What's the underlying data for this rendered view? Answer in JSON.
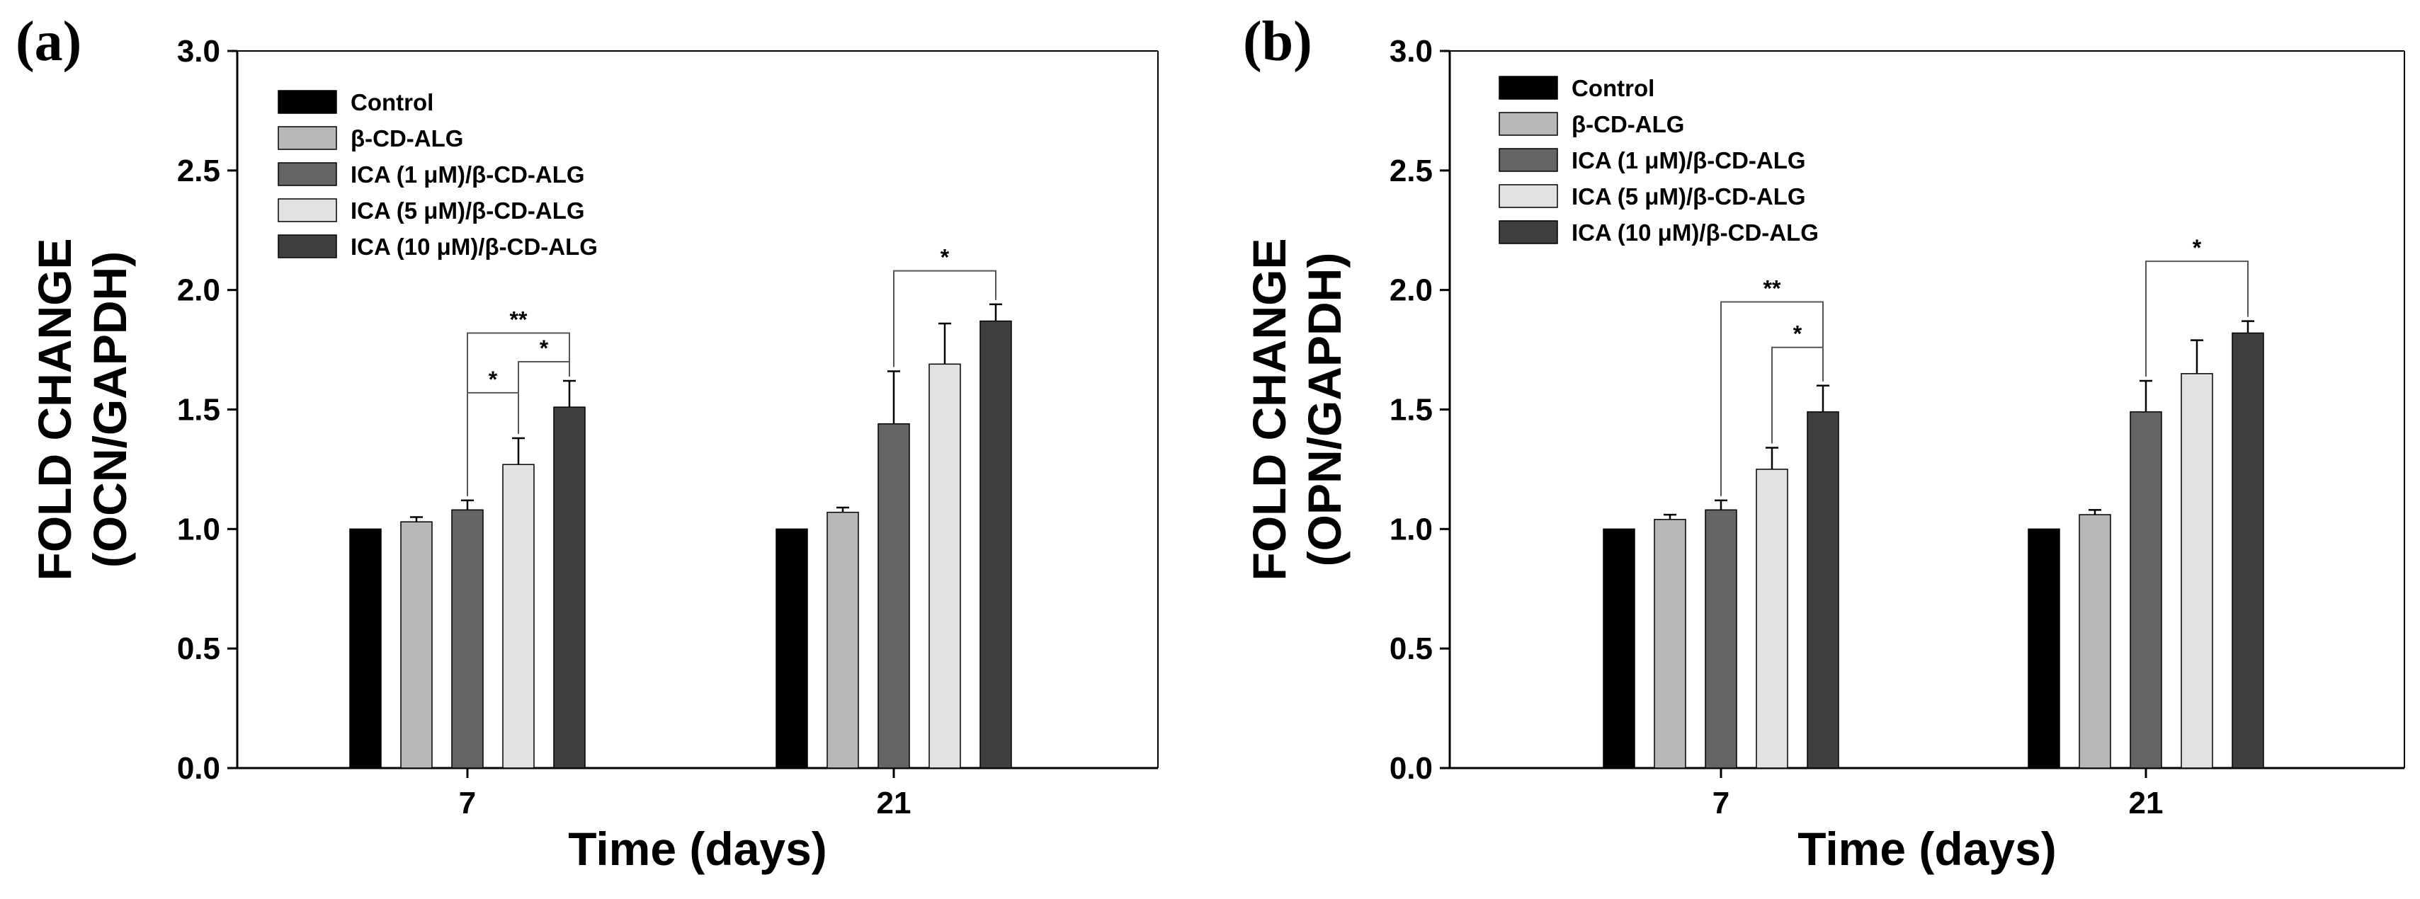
{
  "chart_data": [
    {
      "type": "bar",
      "panel_label": "(a)",
      "ylabel": "FOLD CHANGE",
      "ylabel2": "(OCN/GAPDH)",
      "xlabel": "Time (days)",
      "categories": [
        "7",
        "21"
      ],
      "ylim": [
        0,
        3.0
      ],
      "yticks": [
        "0.0",
        "0.5",
        "1.0",
        "1.5",
        "2.0",
        "2.5",
        "3.0"
      ],
      "legend_position": "top-left",
      "series": [
        {
          "name": "Control",
          "color": "#000000",
          "values": [
            1.0,
            1.0
          ],
          "errors": [
            0,
            0
          ]
        },
        {
          "name": "β-CD-ALG",
          "color": "#b8b8b8",
          "values": [
            1.03,
            1.07
          ],
          "errors": [
            0.02,
            0.02
          ]
        },
        {
          "name": "ICA (1 μM)/β-CD-ALG",
          "color": "#646464",
          "values": [
            1.08,
            1.44
          ],
          "errors": [
            0.04,
            0.22
          ]
        },
        {
          "name": "ICA (5 μM)/β-CD-ALG",
          "color": "#e2e2e2",
          "values": [
            1.27,
            1.69
          ],
          "errors": [
            0.11,
            0.17
          ]
        },
        {
          "name": "ICA (10 μM)/β-CD-ALG",
          "color": "#3f3f3f",
          "values": [
            1.51,
            1.87
          ],
          "errors": [
            0.11,
            0.07
          ]
        }
      ],
      "significance": [
        {
          "category": 0,
          "from": 2,
          "to": 4,
          "label": "**",
          "y": 1.82
        },
        {
          "category": 0,
          "from": 3,
          "to": 4,
          "label": "*",
          "y": 1.7
        },
        {
          "category": 0,
          "from": 2,
          "to": 3,
          "label": "*",
          "y": 1.57
        },
        {
          "category": 1,
          "from": 2,
          "to": 4,
          "label": "*",
          "y": 2.08
        }
      ]
    },
    {
      "type": "bar",
      "panel_label": "(b)",
      "ylabel": "FOLD CHANGE",
      "ylabel2": "(OPN/GAPDH)",
      "xlabel": "Time (days)",
      "categories": [
        "7",
        "21"
      ],
      "ylim": [
        0,
        3.0
      ],
      "yticks": [
        "0.0",
        "0.5",
        "1.0",
        "1.5",
        "2.0",
        "2.5",
        "3.0"
      ],
      "legend_position": "top-left",
      "series": [
        {
          "name": "Control",
          "color": "#000000",
          "values": [
            1.0,
            1.0
          ],
          "errors": [
            0,
            0
          ]
        },
        {
          "name": "β-CD-ALG",
          "color": "#b8b8b8",
          "values": [
            1.04,
            1.06
          ],
          "errors": [
            0.02,
            0.02
          ]
        },
        {
          "name": "ICA (1 μM)/β-CD-ALG",
          "color": "#646464",
          "values": [
            1.08,
            1.49
          ],
          "errors": [
            0.04,
            0.13
          ]
        },
        {
          "name": "ICA (5 μM)/β-CD-ALG",
          "color": "#e2e2e2",
          "values": [
            1.25,
            1.65
          ],
          "errors": [
            0.09,
            0.14
          ]
        },
        {
          "name": "ICA (10 μM)/β-CD-ALG",
          "color": "#3f3f3f",
          "values": [
            1.49,
            1.82
          ],
          "errors": [
            0.11,
            0.05
          ]
        }
      ],
      "significance": [
        {
          "category": 0,
          "from": 2,
          "to": 4,
          "label": "**",
          "y": 1.95
        },
        {
          "category": 0,
          "from": 3,
          "to": 4,
          "label": "*",
          "y": 1.76
        },
        {
          "category": 1,
          "from": 2,
          "to": 4,
          "label": "*",
          "y": 2.12
        }
      ]
    }
  ]
}
